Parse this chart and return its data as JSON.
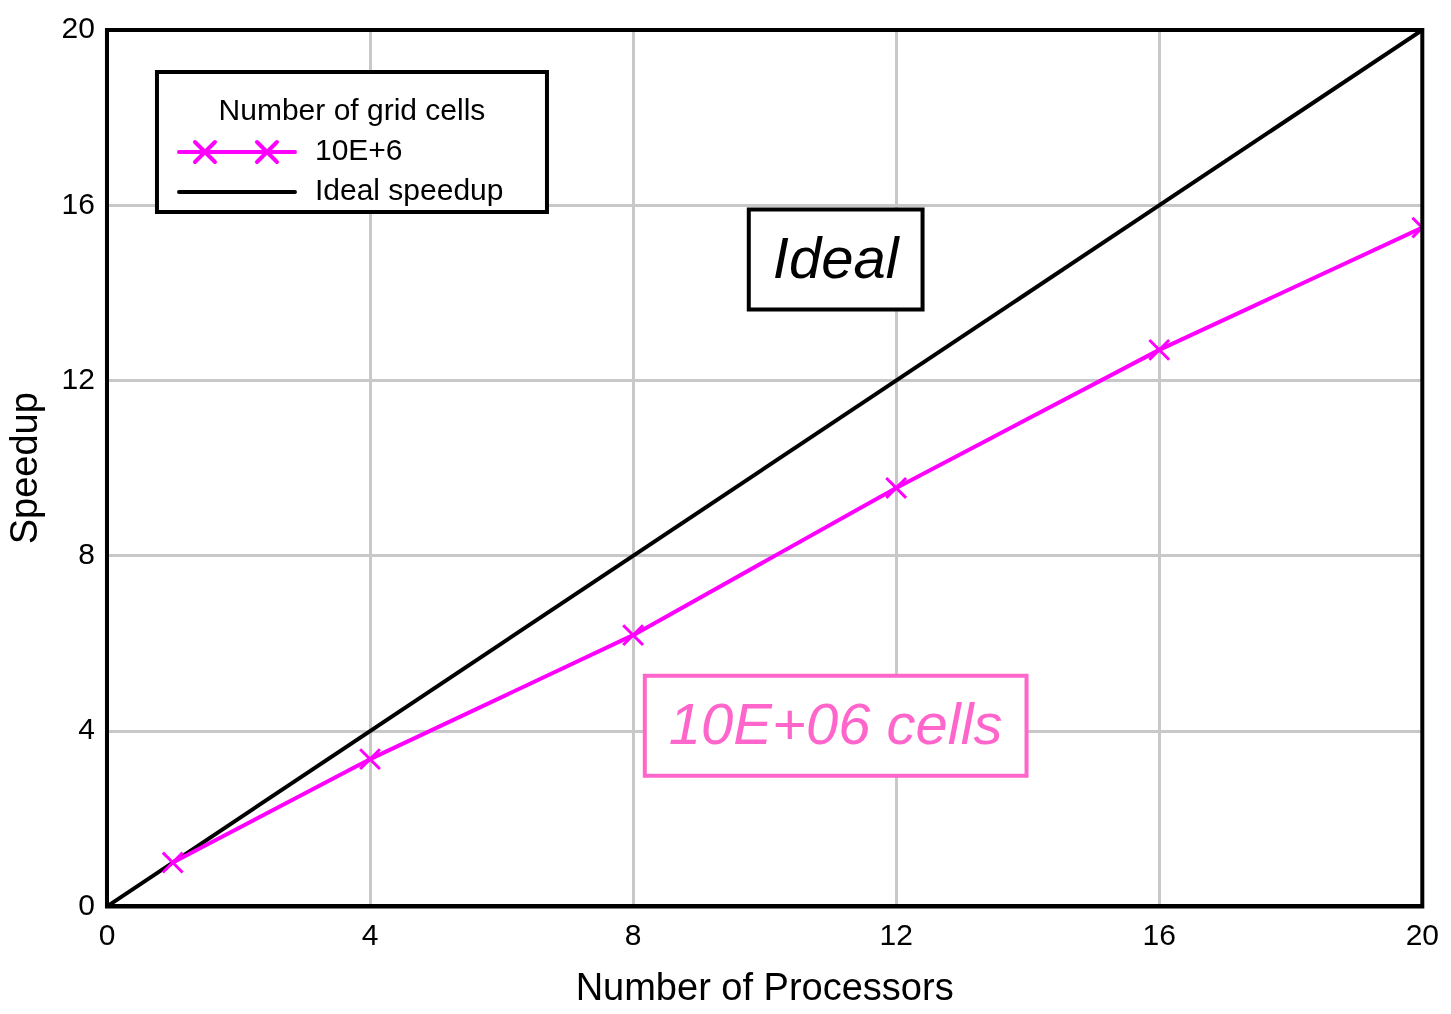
{
  "chart_data": {
    "type": "line",
    "xlabel": "Number of Processors",
    "ylabel": "Speedup",
    "legend_title": "Number of grid cells",
    "legend": "top left",
    "grid": true,
    "xlim": [
      0,
      20
    ],
    "xticks": [
      0,
      4,
      8,
      12,
      16,
      20
    ],
    "ylim": [
      0,
      20
    ],
    "yticks": [
      0,
      4,
      8,
      12,
      16,
      20
    ],
    "series": [
      {
        "name": "10E+6",
        "color": "#ff00ff",
        "marker": "cross",
        "x": [
          1,
          4,
          8,
          12,
          16,
          20
        ],
        "values": [
          1.0,
          3.36,
          6.19,
          9.55,
          12.7,
          15.49
        ]
      },
      {
        "name": "Ideal speedup",
        "color": "#000000",
        "marker": "none",
        "x": [
          0,
          20
        ],
        "values": [
          0,
          20
        ]
      }
    ],
    "annotations": [
      "Ideal",
      "10E+06 cells"
    ]
  }
}
